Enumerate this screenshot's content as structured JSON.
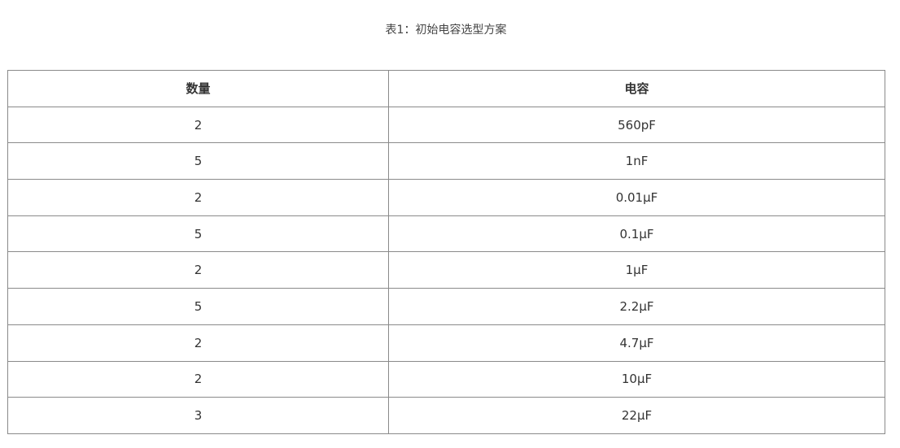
{
  "caption": "表1：初始电容选型方案",
  "headers": [
    "数量",
    "电容"
  ],
  "rows": [
    [
      "2",
      "560pF"
    ],
    [
      "5",
      "1nF"
    ],
    [
      "2",
      "0.01μF"
    ],
    [
      "5",
      "0.1μF"
    ],
    [
      "2",
      "1μF"
    ],
    [
      "5",
      "2.2μF"
    ],
    [
      "2",
      "4.7μF"
    ],
    [
      "2",
      "10μF"
    ],
    [
      "3",
      "22μF"
    ]
  ]
}
